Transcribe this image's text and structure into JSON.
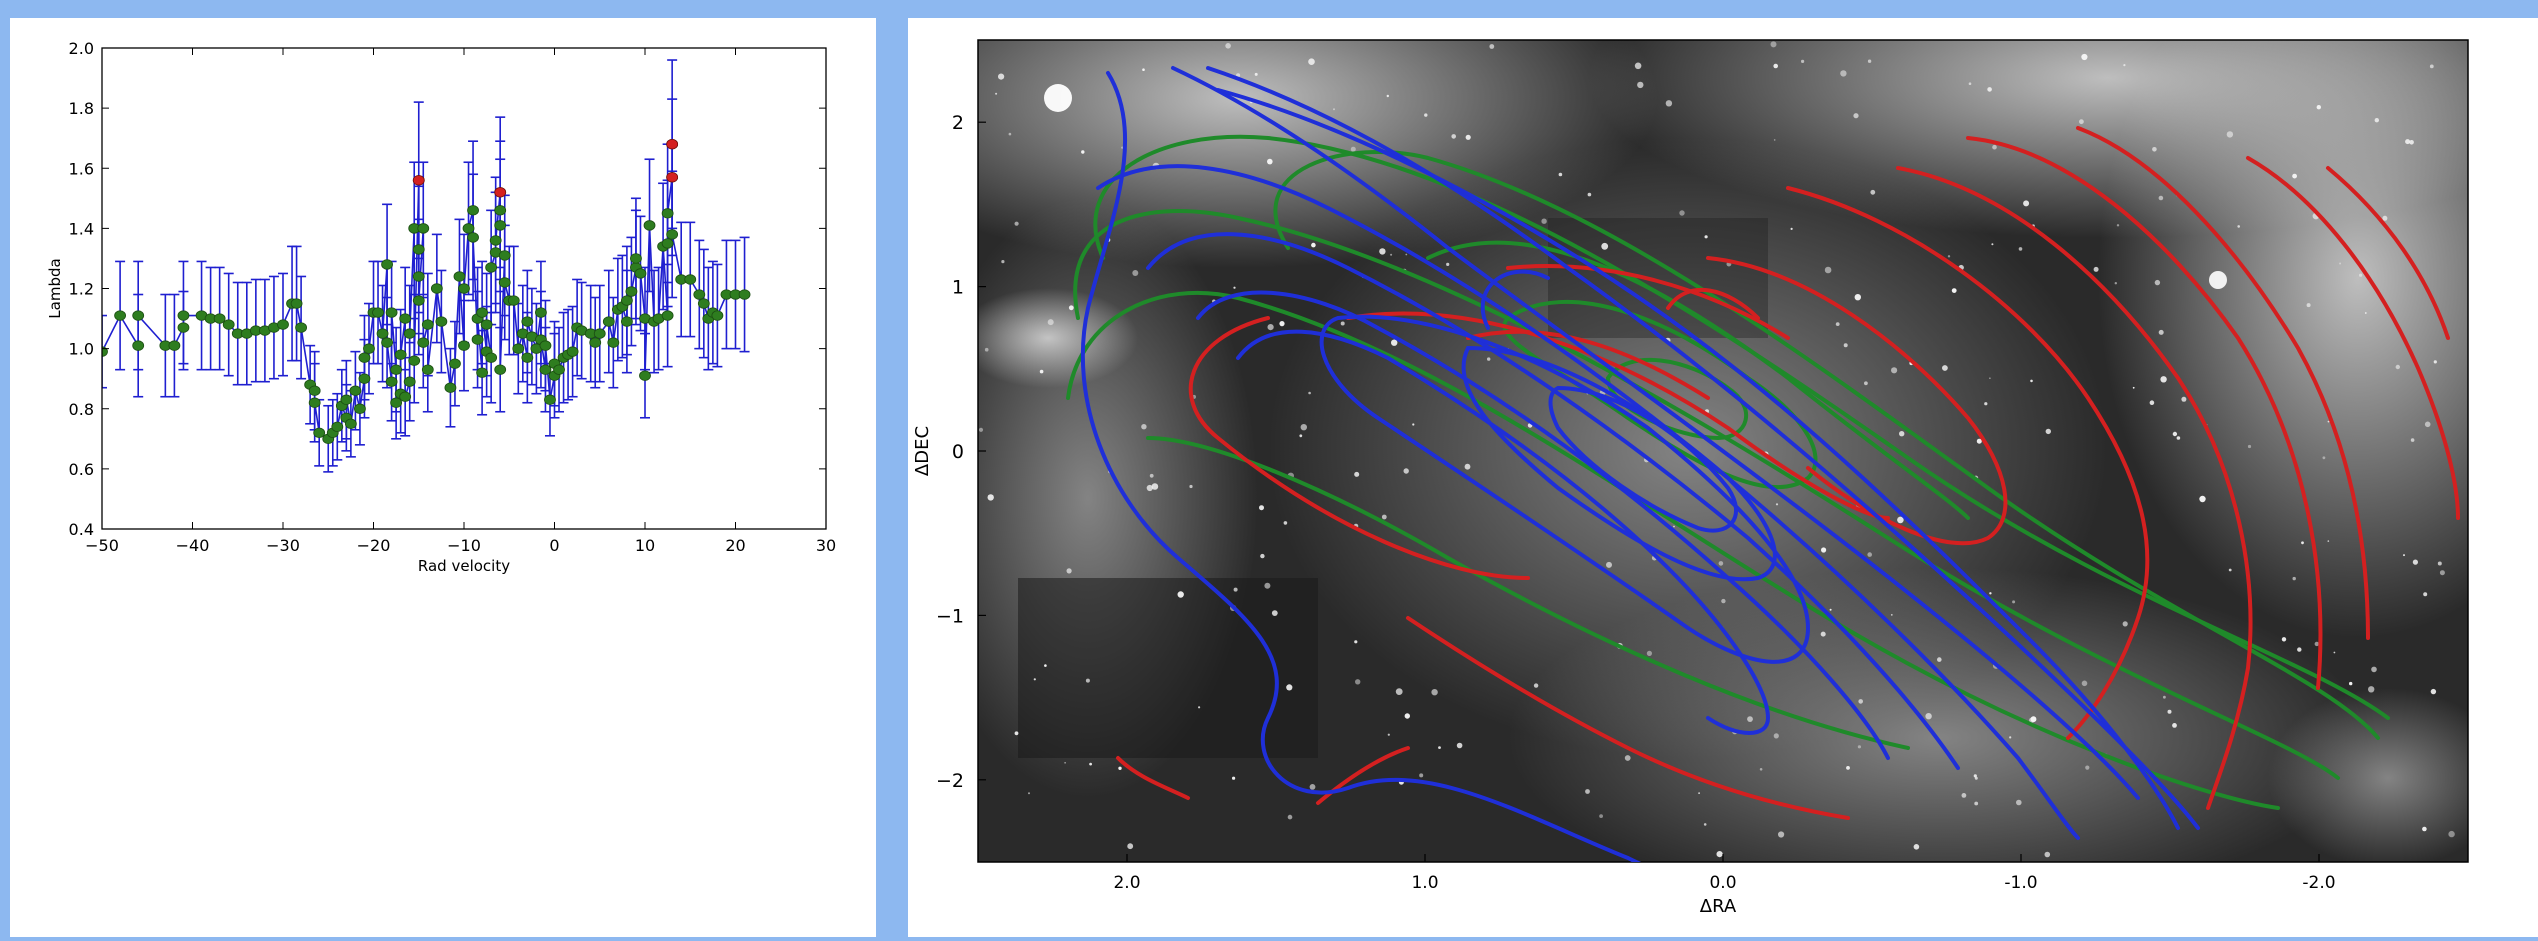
{
  "chart_data": [
    {
      "type": "scatter",
      "title": "",
      "xlabel": "Rad velocity",
      "ylabel": "Lambda",
      "xlim": [
        -50,
        30
      ],
      "ylim": [
        0.4,
        2.0
      ],
      "xticks": [
        "−50",
        "−40",
        "−30",
        "−20",
        "−10",
        "0",
        "10",
        "20",
        "30"
      ],
      "yticks": [
        "0.4",
        "0.6",
        "0.8",
        "1.0",
        "1.2",
        "1.4",
        "1.6",
        "1.8",
        "2.0"
      ],
      "colors": {
        "line": "#1f1fd0",
        "errorbar": "#1f1fd0",
        "marker": "#2e7d1f",
        "highlight": "#d42020"
      },
      "series": [
        {
          "values": [
            {
              "x": -50,
              "y": 0.99,
              "e": 0.12
            },
            {
              "x": -48,
              "y": 1.11,
              "e": 0.18
            },
            {
              "x": -46,
              "y": 1.01,
              "e": 0.17
            },
            {
              "x": -46,
              "y": 1.11,
              "e": 0.18
            },
            {
              "x": -43,
              "y": 1.01,
              "e": 0.17
            },
            {
              "x": -42,
              "y": 1.01,
              "e": 0.17
            },
            {
              "x": -41,
              "y": 1.07,
              "e": 0.12
            },
            {
              "x": -41,
              "y": 1.11,
              "e": 0.18
            },
            {
              "x": -39,
              "y": 1.11,
              "e": 0.18
            },
            {
              "x": -38,
              "y": 1.1,
              "e": 0.17
            },
            {
              "x": -37,
              "y": 1.1,
              "e": 0.17
            },
            {
              "x": -36,
              "y": 1.08,
              "e": 0.17
            },
            {
              "x": -35,
              "y": 1.05,
              "e": 0.17
            },
            {
              "x": -34,
              "y": 1.05,
              "e": 0.17
            },
            {
              "x": -33,
              "y": 1.06,
              "e": 0.17
            },
            {
              "x": -32,
              "y": 1.06,
              "e": 0.17
            },
            {
              "x": -31,
              "y": 1.07,
              "e": 0.17
            },
            {
              "x": -30,
              "y": 1.08,
              "e": 0.17
            },
            {
              "x": -29,
              "y": 1.15,
              "e": 0.19
            },
            {
              "x": -28.5,
              "y": 1.15,
              "e": 0.19
            },
            {
              "x": -28,
              "y": 1.07,
              "e": 0.17
            },
            {
              "x": -27,
              "y": 0.88,
              "e": 0.13
            },
            {
              "x": -26.5,
              "y": 0.86,
              "e": 0.13
            },
            {
              "x": -26.5,
              "y": 0.82,
              "e": 0.13
            },
            {
              "x": -26,
              "y": 0.72,
              "e": 0.11
            },
            {
              "x": -25,
              "y": 0.7,
              "e": 0.11
            },
            {
              "x": -24.5,
              "y": 0.72,
              "e": 0.11
            },
            {
              "x": -24,
              "y": 0.74,
              "e": 0.11
            },
            {
              "x": -23.5,
              "y": 0.81,
              "e": 0.12
            },
            {
              "x": -23,
              "y": 0.77,
              "e": 0.11
            },
            {
              "x": -23,
              "y": 0.83,
              "e": 0.13
            },
            {
              "x": -22.5,
              "y": 0.75,
              "e": 0.11
            },
            {
              "x": -22,
              "y": 0.86,
              "e": 0.13
            },
            {
              "x": -21.5,
              "y": 0.8,
              "e": 0.12
            },
            {
              "x": -21,
              "y": 0.9,
              "e": 0.13
            },
            {
              "x": -21,
              "y": 0.97,
              "e": 0.14
            },
            {
              "x": -20.5,
              "y": 1.0,
              "e": 0.15
            },
            {
              "x": -20,
              "y": 1.12,
              "e": 0.17
            },
            {
              "x": -19.5,
              "y": 1.12,
              "e": 0.17
            },
            {
              "x": -19,
              "y": 1.05,
              "e": 0.16
            },
            {
              "x": -18.5,
              "y": 1.28,
              "e": 0.2
            },
            {
              "x": -18.5,
              "y": 1.02,
              "e": 0.15
            },
            {
              "x": -18,
              "y": 0.89,
              "e": 0.13
            },
            {
              "x": -18,
              "y": 1.12,
              "e": 0.17
            },
            {
              "x": -17.5,
              "y": 0.93,
              "e": 0.14
            },
            {
              "x": -17.5,
              "y": 0.82,
              "e": 0.12
            },
            {
              "x": -17,
              "y": 0.85,
              "e": 0.13
            },
            {
              "x": -17,
              "y": 0.98,
              "e": 0.15
            },
            {
              "x": -16.5,
              "y": 1.1,
              "e": 0.17
            },
            {
              "x": -16.5,
              "y": 0.84,
              "e": 0.13
            },
            {
              "x": -16,
              "y": 0.89,
              "e": 0.13
            },
            {
              "x": -16,
              "y": 1.05,
              "e": 0.16
            },
            {
              "x": -15.5,
              "y": 1.4,
              "e": 0.22
            },
            {
              "x": -15.5,
              "y": 0.96,
              "e": 0.14
            },
            {
              "x": -15,
              "y": 1.56,
              "e": 0.26
            },
            {
              "x": -15,
              "y": 1.33,
              "e": 0.21
            },
            {
              "x": -15,
              "y": 1.24,
              "e": 0.19
            },
            {
              "x": -15,
              "y": 1.16,
              "e": 0.18
            },
            {
              "x": -14.5,
              "y": 1.4,
              "e": 0.22
            },
            {
              "x": -14.5,
              "y": 1.02,
              "e": 0.15
            },
            {
              "x": -14,
              "y": 1.08,
              "e": 0.17
            },
            {
              "x": -14,
              "y": 0.93,
              "e": 0.14
            },
            {
              "x": -13,
              "y": 1.2,
              "e": 0.18
            },
            {
              "x": -12.5,
              "y": 1.09,
              "e": 0.17
            },
            {
              "x": -11.5,
              "y": 0.87,
              "e": 0.13
            },
            {
              "x": -11,
              "y": 0.95,
              "e": 0.14
            },
            {
              "x": -10.5,
              "y": 1.24,
              "e": 0.19
            },
            {
              "x": -10,
              "y": 1.01,
              "e": 0.15
            },
            {
              "x": -10,
              "y": 1.2,
              "e": 0.18
            },
            {
              "x": -9.5,
              "y": 1.4,
              "e": 0.22
            },
            {
              "x": -9,
              "y": 1.46,
              "e": 0.23
            },
            {
              "x": -9,
              "y": 1.37,
              "e": 0.21
            },
            {
              "x": -8.5,
              "y": 1.03,
              "e": 0.16
            },
            {
              "x": -8.5,
              "y": 1.1,
              "e": 0.17
            },
            {
              "x": -8,
              "y": 0.92,
              "e": 0.14
            },
            {
              "x": -8,
              "y": 1.12,
              "e": 0.17
            },
            {
              "x": -7.5,
              "y": 0.99,
              "e": 0.15
            },
            {
              "x": -7.5,
              "y": 1.08,
              "e": 0.17
            },
            {
              "x": -7,
              "y": 0.97,
              "e": 0.15
            },
            {
              "x": -7,
              "y": 1.27,
              "e": 0.19
            },
            {
              "x": -6.5,
              "y": 1.32,
              "e": 0.2
            },
            {
              "x": -6.5,
              "y": 1.36,
              "e": 0.21
            },
            {
              "x": -6,
              "y": 1.52,
              "e": 0.25
            },
            {
              "x": -6,
              "y": 1.46,
              "e": 0.23
            },
            {
              "x": -6,
              "y": 1.41,
              "e": 0.22
            },
            {
              "x": -6,
              "y": 0.93,
              "e": 0.14
            },
            {
              "x": -5.5,
              "y": 1.31,
              "e": 0.2
            },
            {
              "x": -5.5,
              "y": 1.22,
              "e": 0.19
            },
            {
              "x": -5,
              "y": 1.16,
              "e": 0.18
            },
            {
              "x": -4.5,
              "y": 1.16,
              "e": 0.18
            },
            {
              "x": -4,
              "y": 1.0,
              "e": 0.15
            },
            {
              "x": -3.5,
              "y": 1.05,
              "e": 0.16
            },
            {
              "x": -3,
              "y": 0.97,
              "e": 0.15
            },
            {
              "x": -3,
              "y": 1.09,
              "e": 0.17
            },
            {
              "x": -2.5,
              "y": 1.04,
              "e": 0.16
            },
            {
              "x": -2,
              "y": 1.0,
              "e": 0.15
            },
            {
              "x": -1.5,
              "y": 1.12,
              "e": 0.17
            },
            {
              "x": -1.5,
              "y": 1.03,
              "e": 0.16
            },
            {
              "x": -1,
              "y": 0.93,
              "e": 0.14
            },
            {
              "x": -1,
              "y": 1.01,
              "e": 0.15
            },
            {
              "x": -0.5,
              "y": 0.83,
              "e": 0.12
            },
            {
              "x": 0,
              "y": 0.91,
              "e": 0.14
            },
            {
              "x": 0,
              "y": 0.95,
              "e": 0.14
            },
            {
              "x": 0.5,
              "y": 0.93,
              "e": 0.14
            },
            {
              "x": 1,
              "y": 0.97,
              "e": 0.15
            },
            {
              "x": 1.5,
              "y": 0.98,
              "e": 0.15
            },
            {
              "x": 2,
              "y": 0.99,
              "e": 0.15
            },
            {
              "x": 2.5,
              "y": 1.07,
              "e": 0.16
            },
            {
              "x": 3,
              "y": 1.06,
              "e": 0.16
            },
            {
              "x": 4,
              "y": 1.05,
              "e": 0.16
            },
            {
              "x": 4.5,
              "y": 1.02,
              "e": 0.15
            },
            {
              "x": 5,
              "y": 1.05,
              "e": 0.16
            },
            {
              "x": 6,
              "y": 1.09,
              "e": 0.17
            },
            {
              "x": 6.5,
              "y": 1.02,
              "e": 0.15
            },
            {
              "x": 7,
              "y": 1.13,
              "e": 0.17
            },
            {
              "x": 7.5,
              "y": 1.14,
              "e": 0.17
            },
            {
              "x": 8,
              "y": 1.09,
              "e": 0.17
            },
            {
              "x": 8,
              "y": 1.16,
              "e": 0.18
            },
            {
              "x": 8.5,
              "y": 1.19,
              "e": 0.18
            },
            {
              "x": 9,
              "y": 1.27,
              "e": 0.19
            },
            {
              "x": 9,
              "y": 1.3,
              "e": 0.2
            },
            {
              "x": 9.5,
              "y": 1.25,
              "e": 0.19
            },
            {
              "x": 10,
              "y": 1.1,
              "e": 0.17
            },
            {
              "x": 10,
              "y": 0.91,
              "e": 0.14
            },
            {
              "x": 10.5,
              "y": 1.41,
              "e": 0.22
            },
            {
              "x": 11,
              "y": 1.09,
              "e": 0.17
            },
            {
              "x": 11.5,
              "y": 1.1,
              "e": 0.17
            },
            {
              "x": 12,
              "y": 1.34,
              "e": 0.21
            },
            {
              "x": 12.5,
              "y": 1.11,
              "e": 0.17
            },
            {
              "x": 12.5,
              "y": 1.35,
              "e": 0.21
            },
            {
              "x": 12.5,
              "y": 1.45,
              "e": 0.23
            },
            {
              "x": 13,
              "y": 1.57,
              "e": 0.26
            },
            {
              "x": 13,
              "y": 1.68,
              "e": 0.28
            },
            {
              "x": 13,
              "y": 1.38,
              "e": 0.21
            },
            {
              "x": 14,
              "y": 1.23,
              "e": 0.19
            },
            {
              "x": 15,
              "y": 1.23,
              "e": 0.19
            },
            {
              "x": 16,
              "y": 1.18,
              "e": 0.18
            },
            {
              "x": 16.5,
              "y": 1.15,
              "e": 0.18
            },
            {
              "x": 17,
              "y": 1.1,
              "e": 0.17
            },
            {
              "x": 17.5,
              "y": 1.12,
              "e": 0.17
            },
            {
              "x": 18,
              "y": 1.11,
              "e": 0.17
            },
            {
              "x": 19,
              "y": 1.18,
              "e": 0.18
            },
            {
              "x": 20,
              "y": 1.18,
              "e": 0.18
            },
            {
              "x": 21,
              "y": 1.18,
              "e": 0.19
            }
          ]
        }
      ],
      "highlighted_points": [
        {
          "x": -15,
          "y": 1.56
        },
        {
          "x": -6,
          "y": 1.52
        },
        {
          "x": 13,
          "y": 1.57
        },
        {
          "x": 13,
          "y": 1.68
        }
      ]
    },
    {
      "type": "contour",
      "title": "",
      "xlabel": "ΔRA",
      "ylabel": "ΔDEC",
      "xlim": [
        2.5,
        -2.5
      ],
      "ylim": [
        -2.5,
        2.5
      ],
      "xticks": [
        "2.0",
        "1.0",
        "0.0",
        "-1.0",
        "-2.0"
      ],
      "yticks": [
        "2",
        "1",
        "0",
        "−1",
        "−2"
      ],
      "background": "grayscale nebula image",
      "colors": {
        "blue": "#1f2fd8",
        "green": "#1f8a2a",
        "red": "#d42020"
      }
    }
  ]
}
